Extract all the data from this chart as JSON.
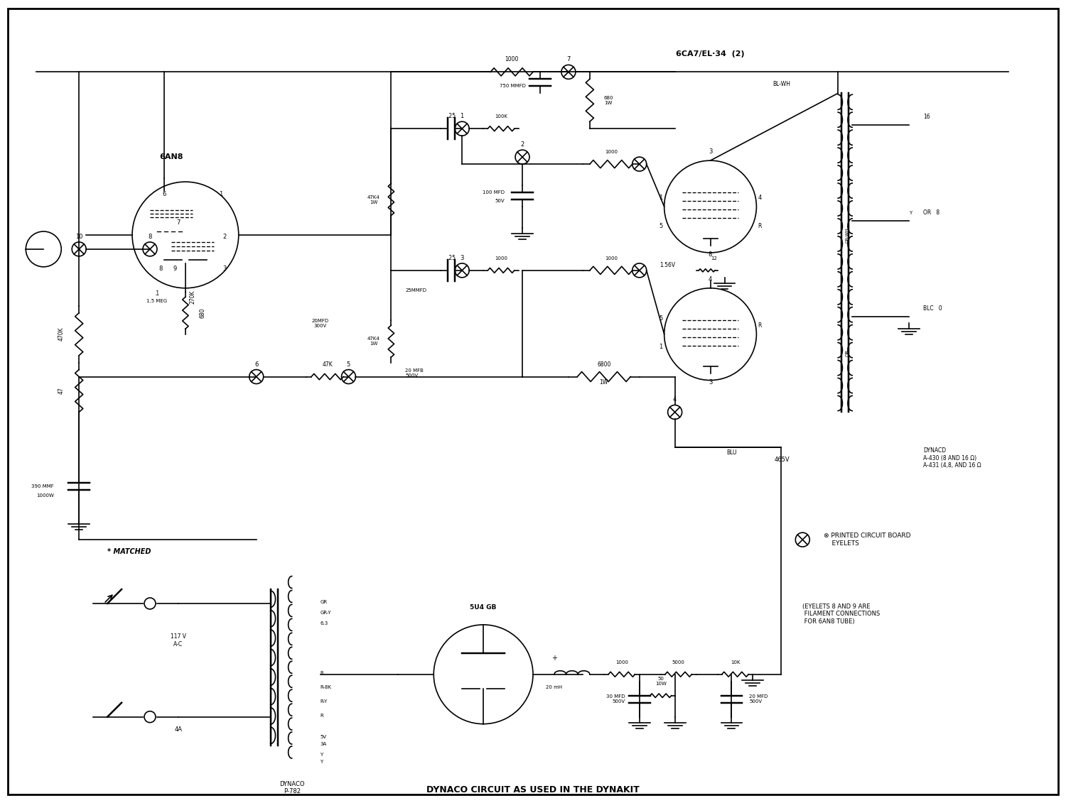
{
  "title": "DYNACO CIRCUIT AS USED IN THE DYNAKIT",
  "subtitle": "DYNACO P-782",
  "background_color": "#ffffff",
  "line_color": "#000000",
  "fig_width": 15.0,
  "fig_height": 11.31,
  "dpi": 100,
  "labels": {
    "tube1": "6AN8",
    "tube2": "6CA7/EL-34  (2)",
    "tube3": "5U4 GB",
    "dynaco_transformer": "DYNACD\nA-430 (8 AND 16 Ω)\nA-431 (4,8, AND 16 Ω",
    "dynaco_power": "DYNACO\nP-782",
    "matched": "* MATCHED",
    "printed_circuit": "⊗ PRINTED CIRCUIT BOARD\n    EYELETS",
    "eyelets_note": "(EYELETS 8 AND 9 ARE\n FILAMENT CONNECTIONS\n FOR 6AN8 TUBE)",
    "bottom_title": "DYNACO CIRCUIT AS USED IN THE DYNAKIT"
  }
}
